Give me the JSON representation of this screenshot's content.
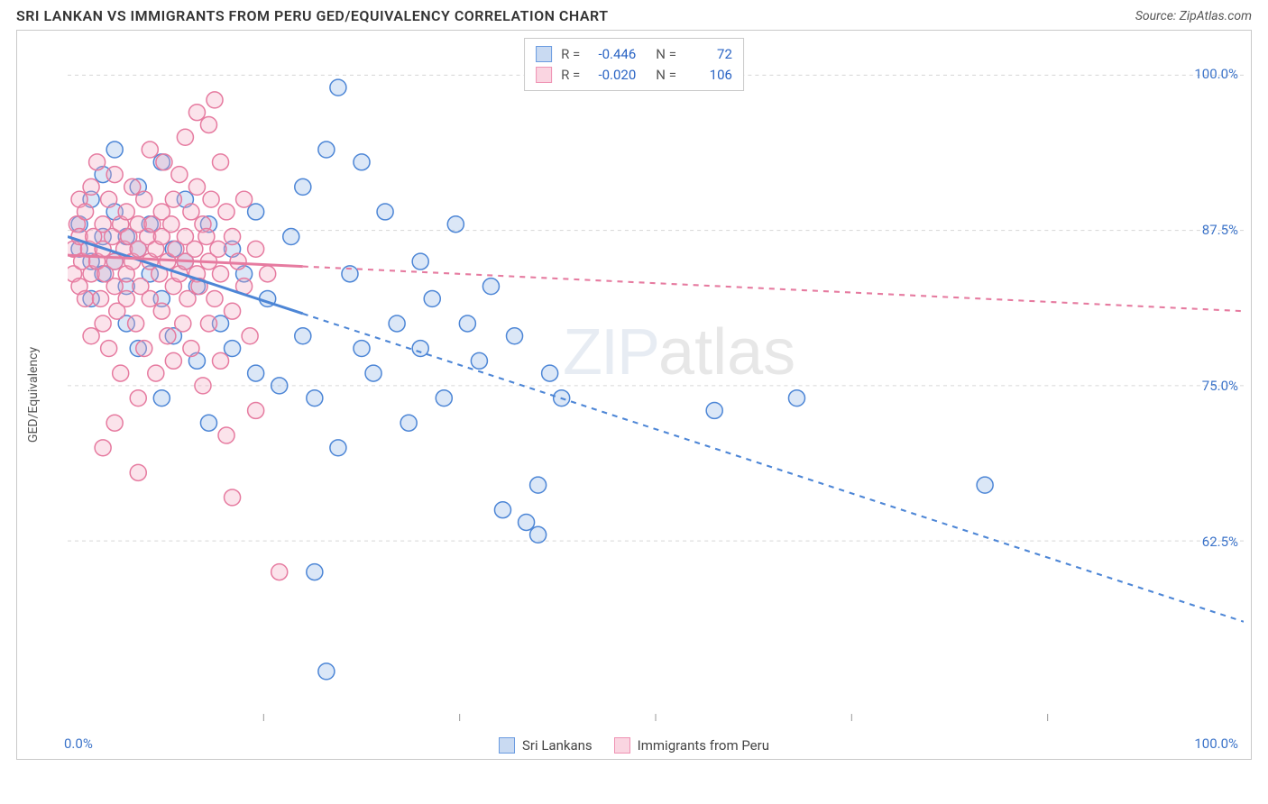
{
  "title": "SRI LANKAN VS IMMIGRANTS FROM PERU GED/EQUIVALENCY CORRELATION CHART",
  "source_label": "Source: ZipAtlas.com",
  "watermark_zip": "ZIP",
  "watermark_atlas": "atlas",
  "chart": {
    "type": "scatter",
    "y_axis_label": "GED/Equivalency",
    "xlim": [
      0,
      100
    ],
    "ylim": [
      48,
      103
    ],
    "x_ticks": [
      {
        "v": 0,
        "label": "0.0%"
      },
      {
        "v": 100,
        "label": "100.0%"
      }
    ],
    "y_ticks": [
      {
        "v": 62.5,
        "label": "62.5%"
      },
      {
        "v": 75.0,
        "label": "75.0%"
      },
      {
        "v": 87.5,
        "label": "87.5%"
      },
      {
        "v": 100.0,
        "label": "100.0%"
      }
    ],
    "x_minor_ticks_count": 6,
    "background_color": "#ffffff",
    "grid_color": "#d6d6d6",
    "border_color": "#c9c9c9",
    "marker_radius": 9,
    "marker_stroke_width": 1.5,
    "marker_fill_opacity": 0.32,
    "trend_line_width": 3,
    "dash_pattern": "6,6",
    "series": [
      {
        "id": "sri_lankans",
        "label": "Sri Lankans",
        "color_stroke": "#4d86d6",
        "color_fill": "#8fb3e6",
        "swatch_fill": "#c9daf2",
        "swatch_border": "#6a9be0",
        "R": "-0.446",
        "N": "72",
        "trend": {
          "x1": 0,
          "y1": 87,
          "x2": 100,
          "y2": 56,
          "solid_to_x": 20
        },
        "points": [
          [
            1,
            86
          ],
          [
            1,
            88
          ],
          [
            2,
            85
          ],
          [
            2,
            90
          ],
          [
            2,
            82
          ],
          [
            3,
            87
          ],
          [
            3,
            84
          ],
          [
            3,
            92
          ],
          [
            4,
            85
          ],
          [
            4,
            89
          ],
          [
            4,
            94
          ],
          [
            5,
            83
          ],
          [
            5,
            87
          ],
          [
            5,
            80
          ],
          [
            6,
            86
          ],
          [
            6,
            91
          ],
          [
            6,
            78
          ],
          [
            7,
            84
          ],
          [
            7,
            88
          ],
          [
            8,
            82
          ],
          [
            8,
            93
          ],
          [
            8,
            74
          ],
          [
            9,
            86
          ],
          [
            9,
            79
          ],
          [
            10,
            85
          ],
          [
            10,
            90
          ],
          [
            11,
            77
          ],
          [
            11,
            83
          ],
          [
            12,
            88
          ],
          [
            12,
            72
          ],
          [
            13,
            80
          ],
          [
            14,
            86
          ],
          [
            14,
            78
          ],
          [
            15,
            84
          ],
          [
            16,
            76
          ],
          [
            16,
            89
          ],
          [
            17,
            82
          ],
          [
            18,
            75
          ],
          [
            19,
            87
          ],
          [
            20,
            79
          ],
          [
            20,
            91
          ],
          [
            21,
            60
          ],
          [
            21,
            74
          ],
          [
            22,
            94
          ],
          [
            22,
            52
          ],
          [
            23,
            70
          ],
          [
            23,
            99
          ],
          [
            24,
            84
          ],
          [
            25,
            78
          ],
          [
            25,
            93
          ],
          [
            26,
            76
          ],
          [
            27,
            89
          ],
          [
            28,
            80
          ],
          [
            29,
            72
          ],
          [
            30,
            85
          ],
          [
            30,
            78
          ],
          [
            31,
            82
          ],
          [
            32,
            74
          ],
          [
            33,
            88
          ],
          [
            34,
            80
          ],
          [
            35,
            77
          ],
          [
            36,
            83
          ],
          [
            37,
            65
          ],
          [
            38,
            79
          ],
          [
            39,
            64
          ],
          [
            40,
            63
          ],
          [
            40,
            67
          ],
          [
            41,
            76
          ],
          [
            42,
            74
          ],
          [
            55,
            73
          ],
          [
            62,
            74
          ],
          [
            78,
            67
          ]
        ]
      },
      {
        "id": "immigrants_peru",
        "label": "Immigrants from Peru",
        "color_stroke": "#e67ba0",
        "color_fill": "#f3a9c1",
        "swatch_fill": "#fad5e1",
        "swatch_border": "#ef92b3",
        "R": "-0.020",
        "N": "106",
        "trend": {
          "x1": 0,
          "y1": 85.5,
          "x2": 100,
          "y2": 81,
          "solid_to_x": 20
        },
        "points": [
          [
            0.5,
            86
          ],
          [
            0.5,
            84
          ],
          [
            0.8,
            88
          ],
          [
            1,
            83
          ],
          [
            1,
            90
          ],
          [
            1,
            87
          ],
          [
            1.2,
            85
          ],
          [
            1.5,
            82
          ],
          [
            1.5,
            89
          ],
          [
            1.8,
            86
          ],
          [
            2,
            84
          ],
          [
            2,
            91
          ],
          [
            2,
            79
          ],
          [
            2.2,
            87
          ],
          [
            2.5,
            85
          ],
          [
            2.5,
            93
          ],
          [
            2.8,
            82
          ],
          [
            3,
            88
          ],
          [
            3,
            80
          ],
          [
            3,
            86
          ],
          [
            3.2,
            84
          ],
          [
            3.5,
            90
          ],
          [
            3.5,
            78
          ],
          [
            3.8,
            87
          ],
          [
            4,
            85
          ],
          [
            4,
            83
          ],
          [
            4,
            92
          ],
          [
            4.2,
            81
          ],
          [
            4.5,
            88
          ],
          [
            4.5,
            76
          ],
          [
            4.8,
            86
          ],
          [
            5,
            84
          ],
          [
            5,
            89
          ],
          [
            5,
            82
          ],
          [
            5.2,
            87
          ],
          [
            5.5,
            85
          ],
          [
            5.5,
            91
          ],
          [
            5.8,
            80
          ],
          [
            6,
            88
          ],
          [
            6,
            74
          ],
          [
            6,
            86
          ],
          [
            6.2,
            83
          ],
          [
            6.5,
            90
          ],
          [
            6.5,
            78
          ],
          [
            6.8,
            87
          ],
          [
            7,
            85
          ],
          [
            7,
            82
          ],
          [
            7,
            94
          ],
          [
            7.2,
            88
          ],
          [
            7.5,
            76
          ],
          [
            7.5,
            86
          ],
          [
            7.8,
            84
          ],
          [
            8,
            89
          ],
          [
            8,
            81
          ],
          [
            8,
            87
          ],
          [
            8.2,
            93
          ],
          [
            8.5,
            79
          ],
          [
            8.5,
            85
          ],
          [
            8.8,
            88
          ],
          [
            9,
            83
          ],
          [
            9,
            90
          ],
          [
            9,
            77
          ],
          [
            9.2,
            86
          ],
          [
            9.5,
            84
          ],
          [
            9.5,
            92
          ],
          [
            9.8,
            80
          ],
          [
            10,
            87
          ],
          [
            10,
            85
          ],
          [
            10,
            95
          ],
          [
            10.2,
            82
          ],
          [
            10.5,
            89
          ],
          [
            10.5,
            78
          ],
          [
            10.8,
            86
          ],
          [
            11,
            84
          ],
          [
            11,
            91
          ],
          [
            11,
            97
          ],
          [
            11.2,
            83
          ],
          [
            11.5,
            88
          ],
          [
            11.5,
            75
          ],
          [
            11.8,
            87
          ],
          [
            12,
            85
          ],
          [
            12,
            80
          ],
          [
            12,
            96
          ],
          [
            12.2,
            90
          ],
          [
            12.5,
            82
          ],
          [
            12.5,
            98
          ],
          [
            12.8,
            86
          ],
          [
            13,
            84
          ],
          [
            13,
            93
          ],
          [
            13,
            77
          ],
          [
            13.5,
            89
          ],
          [
            13.5,
            71
          ],
          [
            14,
            87
          ],
          [
            14,
            81
          ],
          [
            14,
            66
          ],
          [
            14.5,
            85
          ],
          [
            15,
            83
          ],
          [
            15,
            90
          ],
          [
            15.5,
            79
          ],
          [
            16,
            86
          ],
          [
            16,
            73
          ],
          [
            17,
            84
          ],
          [
            18,
            60
          ],
          [
            3,
            70
          ],
          [
            4,
            72
          ],
          [
            6,
            68
          ]
        ]
      }
    ]
  },
  "legend_bottom": [
    {
      "series": "sri_lankans"
    },
    {
      "series": "immigrants_peru"
    }
  ]
}
